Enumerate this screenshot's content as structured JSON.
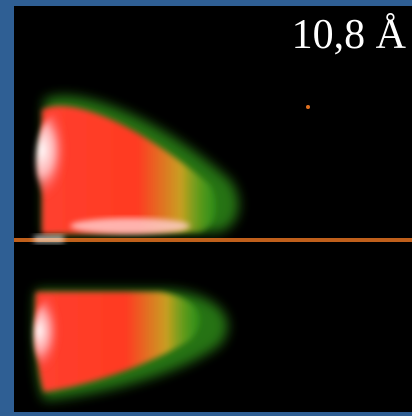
{
  "label": "10,8 Å"
}
